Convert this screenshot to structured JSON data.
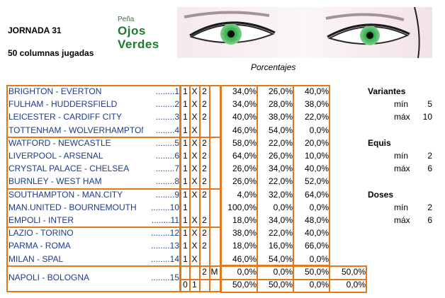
{
  "header": {
    "title": "JORNADA 31",
    "columns_played": "50 columnas jugadas",
    "logo_line1": "Peña",
    "logo_line2": "Ojos",
    "logo_line3": "Verdes",
    "porcentajes": "Porcentajes"
  },
  "matches": [
    {
      "team": "BRIGHTON - EVERTON",
      "num": "........1",
      "marks": [
        "1",
        "X",
        "2"
      ],
      "pct": [
        "34,0%",
        "26,0%",
        "40,0%"
      ]
    },
    {
      "team": "FULHAM - HUDDERSFIELD",
      "num": "........2",
      "marks": [
        "1",
        "X",
        "2"
      ],
      "pct": [
        "34,0%",
        "28,0%",
        "38,0%"
      ]
    },
    {
      "team": "LEICESTER - CARDIFF CITY",
      "num": "........3",
      "marks": [
        "1",
        "X",
        "2"
      ],
      "pct": [
        "40,0%",
        "38,0%",
        "22,0%"
      ]
    },
    {
      "team": "TOTTENHAM - WOLVERHAMPTON",
      "num": "........4",
      "marks": [
        "1",
        "X",
        ""
      ],
      "pct": [
        "46,0%",
        "54,0%",
        "0,0%"
      ]
    },
    {
      "team": "WATFORD - NEWCASTLE",
      "num": "........5",
      "marks": [
        "1",
        "X",
        "2"
      ],
      "pct": [
        "58,0%",
        "22,0%",
        "20,0%"
      ]
    },
    {
      "team": "LIVERPOOL - ARSENAL",
      "num": "........6",
      "marks": [
        "1",
        "X",
        "2"
      ],
      "pct": [
        "64,0%",
        "26,0%",
        "10,0%"
      ]
    },
    {
      "team": "CRYSTAL PALACE - CHELSEA",
      "num": "........7",
      "marks": [
        "1",
        "X",
        "2"
      ],
      "pct": [
        "26,0%",
        "34,0%",
        "40,0%"
      ]
    },
    {
      "team": "BURNLEY - WEST HAM",
      "num": "........8",
      "marks": [
        "1",
        "X",
        "2"
      ],
      "pct": [
        "26,0%",
        "22,0%",
        "52,0%"
      ]
    },
    {
      "team": "SOUTHAMPTON - MAN.CITY",
      "num": "........9",
      "marks": [
        "1",
        "X",
        "2"
      ],
      "pct": [
        "4,0%",
        "32,0%",
        "64,0%"
      ]
    },
    {
      "team": "MAN.UNITED - BOURNEMOUTH",
      "num": "........10",
      "marks": [
        "1",
        "",
        ""
      ],
      "pct": [
        "100,0%",
        "0,0%",
        "0,0%"
      ]
    },
    {
      "team": "EMPOLI - INTER",
      "num": "........11",
      "marks": [
        "1",
        "X",
        "2"
      ],
      "pct": [
        "18,0%",
        "34,0%",
        "48,0%"
      ]
    },
    {
      "team": "LAZIO - TORINO",
      "num": "........12",
      "marks": [
        "1",
        "X",
        "2"
      ],
      "pct": [
        "38,0%",
        "22,0%",
        "40,0%"
      ]
    },
    {
      "team": "PARMA - ROMA",
      "num": "........13",
      "marks": [
        "1",
        "X",
        "2"
      ],
      "pct": [
        "18,0%",
        "16,0%",
        "66,0%"
      ]
    },
    {
      "team": "MILAN - SPAL",
      "num": "........14",
      "marks": [
        "1",
        "X",
        ""
      ],
      "pct": [
        "46,0%",
        "54,0%",
        "0,0%"
      ]
    }
  ],
  "pleno": {
    "team": "NAPOLI - BOLOGNA",
    "num": "........15",
    "row1_marks": [
      "",
      "",
      "2",
      "M"
    ],
    "row1_pct": [
      "0,0%",
      "0,0%",
      "50,0%",
      "50,0%"
    ],
    "row2_marks": [
      "0",
      "1",
      "",
      ""
    ],
    "row2_pct": [
      "50,0%",
      "50,0%",
      "0,0%",
      "0,0%"
    ]
  },
  "side": {
    "variantes": {
      "title": "Variantes",
      "min_label": "mín",
      "min": "5",
      "max_label": "máx",
      "max": "10"
    },
    "equis": {
      "title": "Equis",
      "min_label": "mín",
      "min": "2",
      "max_label": "máx",
      "max": "6"
    },
    "doses": {
      "title": "Doses",
      "min_label": "mín",
      "min": "2",
      "max_label": "máx",
      "max": "6"
    }
  }
}
